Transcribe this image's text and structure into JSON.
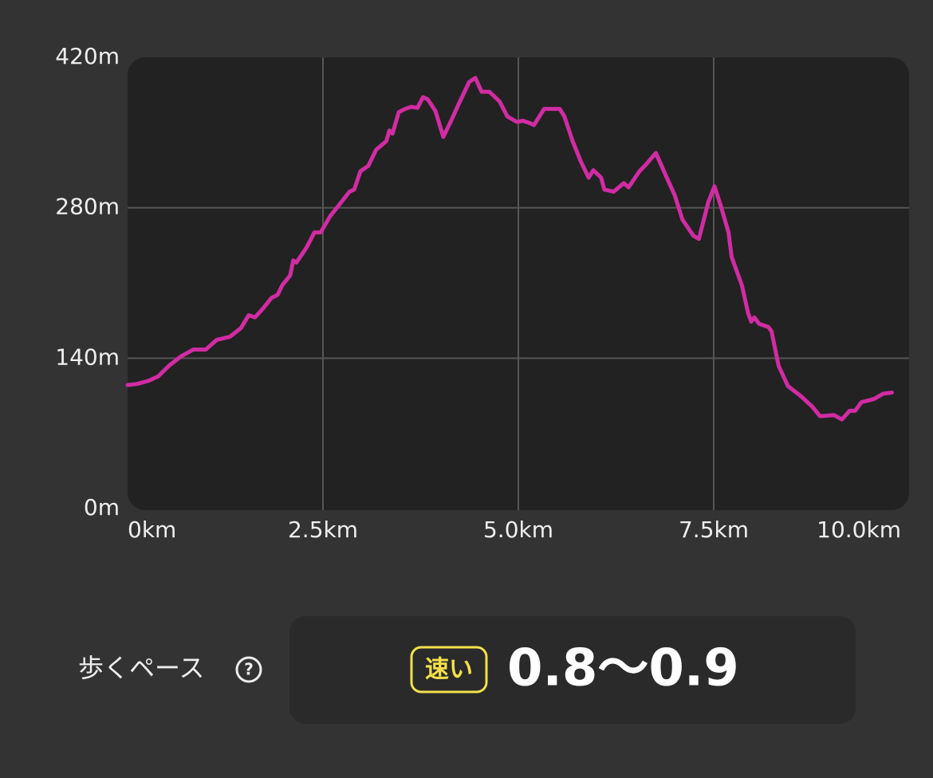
{
  "chart_data": {
    "type": "line",
    "x": [
      0,
      0.12,
      0.27,
      0.39,
      0.53,
      0.69,
      0.84,
      1.0,
      1.14,
      1.31,
      1.45,
      1.55,
      1.63,
      1.73,
      1.84,
      1.92,
      1.98,
      2.08,
      2.12,
      2.16,
      2.29,
      2.39,
      2.47,
      2.59,
      2.71,
      2.84,
      2.9,
      2.98,
      3.08,
      3.18,
      3.31,
      3.35,
      3.39,
      3.47,
      3.55,
      3.63,
      3.71,
      3.78,
      3.84,
      3.94,
      4.04,
      4.14,
      4.24,
      4.37,
      4.45,
      4.53,
      4.63,
      4.76,
      4.86,
      4.98,
      5.06,
      5.14,
      5.2,
      5.33,
      5.53,
      5.59,
      5.69,
      5.8,
      5.9,
      5.96,
      6.06,
      6.1,
      6.22,
      6.35,
      6.41,
      6.55,
      6.63,
      6.76,
      6.9,
      7.0,
      7.1,
      7.24,
      7.31,
      7.43,
      7.51,
      7.59,
      7.69,
      7.73,
      7.86,
      7.94,
      7.98,
      8.02,
      8.08,
      8.2,
      8.24,
      8.33,
      8.45,
      8.61,
      8.76,
      8.86,
      9.04,
      9.14,
      9.24,
      9.31,
      9.39,
      9.55,
      9.67,
      9.78
    ],
    "series": [
      {
        "color": "#d12ca3",
        "values": [
          115,
          116,
          119,
          123,
          133,
          142,
          148,
          148,
          157,
          160,
          168,
          180,
          178,
          186,
          196,
          199,
          208,
          217,
          231,
          229,
          243,
          257,
          257,
          272,
          283,
          295,
          297,
          314,
          319,
          334,
          342,
          352,
          349,
          369,
          372,
          374,
          373,
          383,
          381,
          370,
          346,
          361,
          377,
          397,
          401,
          388,
          388,
          379,
          365,
          360,
          361,
          359,
          357,
          372,
          372,
          365,
          343,
          323,
          308,
          315,
          308,
          297,
          295,
          303,
          299,
          314,
          320,
          331,
          308,
          292,
          269,
          254,
          251,
          285,
          300,
          282,
          257,
          234,
          208,
          182,
          174,
          178,
          172,
          169,
          165,
          133,
          114,
          105,
          95,
          86,
          87,
          83,
          91,
          91,
          99,
          102,
          107,
          108
        ]
      }
    ],
    "xlim": [
      0,
      10
    ],
    "xticks": [
      {
        "value": 0,
        "label": "0km"
      },
      {
        "value": 2.5,
        "label": "2.5km"
      },
      {
        "value": 5,
        "label": "5.0km"
      },
      {
        "value": 7.5,
        "label": "7.5km"
      },
      {
        "value": 10,
        "label": "10.0km"
      }
    ],
    "ylim": [
      0,
      420
    ],
    "yticks": [
      {
        "value": 0,
        "label": "0m"
      },
      {
        "value": 140,
        "label": "140m"
      },
      {
        "value": 280,
        "label": "280m"
      },
      {
        "value": 420,
        "label": "420m"
      }
    ],
    "grid": true
  },
  "pace": {
    "label": "歩くペース",
    "badge": "速い",
    "value": "0.8～0.9"
  }
}
